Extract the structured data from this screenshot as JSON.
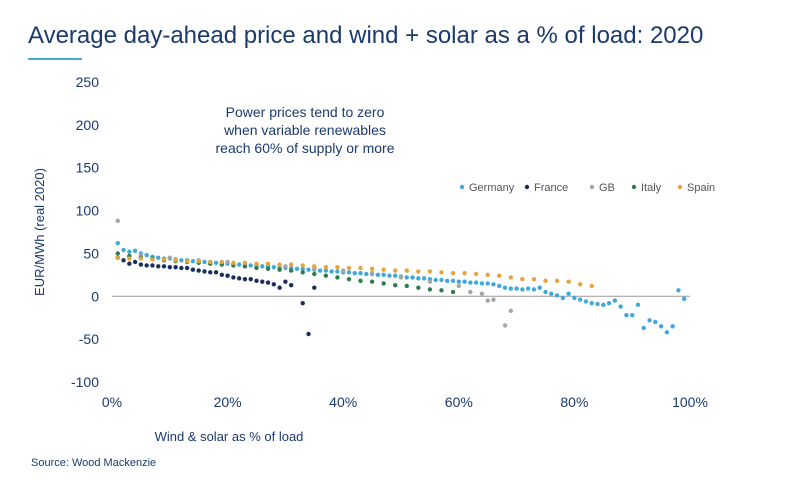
{
  "title": "Average day-ahead price and wind + solar as a % of load: 2020",
  "source": "Source: Wood Mackenzie",
  "chart_data": {
    "type": "scatter",
    "title": "Average day-ahead price and wind + solar as a % of load: 2020",
    "xlabel": "Wind & solar as % of load",
    "ylabel": "EUR/MWh (real 2020)",
    "xlim": [
      0,
      100
    ],
    "ylim": [
      -100,
      250
    ],
    "x_ticks": [
      "0%",
      "20%",
      "40%",
      "60%",
      "80%",
      "100%"
    ],
    "y_ticks": [
      "250",
      "200",
      "150",
      "100",
      "50",
      "0",
      "-50",
      "-100"
    ],
    "grid": false,
    "legend_position": "right",
    "annotation": [
      "Power prices tend to zero",
      "when variable renewables",
      "reach 60% of supply or more"
    ],
    "colors": {
      "Germany": "#3fa9dc",
      "France": "#1b2e5a",
      "GB": "#a6a6a6",
      "Italy": "#2e7d4f",
      "Spain": "#e8a33a",
      "text": "#1a3a6e"
    },
    "series": [
      {
        "name": "Germany",
        "x": [
          1,
          2,
          3,
          4,
          5,
          6,
          7,
          8,
          9,
          10,
          11,
          12,
          13,
          14,
          15,
          16,
          17,
          18,
          19,
          20,
          21,
          22,
          23,
          24,
          25,
          26,
          27,
          28,
          29,
          30,
          31,
          32,
          33,
          34,
          35,
          36,
          37,
          38,
          39,
          40,
          41,
          42,
          43,
          44,
          45,
          46,
          47,
          48,
          49,
          50,
          51,
          52,
          53,
          54,
          55,
          56,
          57,
          58,
          59,
          60,
          61,
          62,
          63,
          64,
          65,
          66,
          67,
          68,
          69,
          70,
          71,
          72,
          73,
          74,
          75,
          76,
          77,
          78,
          79,
          80,
          81,
          82,
          83,
          84,
          85,
          86,
          87,
          88,
          89,
          90,
          91,
          92,
          93,
          94,
          95,
          96,
          97,
          98
        ],
        "y": [
          62,
          54,
          52,
          53,
          50,
          48,
          46,
          45,
          44,
          44,
          43,
          42,
          42,
          41,
          40,
          40,
          40,
          39,
          38,
          38,
          38,
          37,
          37,
          36,
          36,
          35,
          35,
          34,
          34,
          33,
          33,
          32,
          32,
          31,
          31,
          30,
          30,
          29,
          29,
          28,
          28,
          27,
          27,
          26,
          26,
          25,
          25,
          24,
          24,
          23,
          22,
          22,
          21,
          21,
          20,
          19,
          19,
          18,
          18,
          17,
          17,
          16,
          16,
          15,
          15,
          14,
          12,
          10,
          9,
          9,
          8,
          9,
          8,
          10,
          5,
          3,
          1,
          -2,
          3,
          -2,
          -4,
          -6,
          -8,
          -9,
          -10,
          -8,
          -5,
          -12,
          -22,
          -22,
          -10,
          -37,
          -28,
          -30,
          -35,
          -42,
          -35,
          7
        ],
        "extra": [
          [
            99,
            -3
          ]
        ]
      },
      {
        "name": "France",
        "x": [
          1,
          2,
          3,
          4,
          5,
          6,
          7,
          8,
          9,
          10,
          11,
          12,
          13,
          14,
          15,
          16,
          17,
          18,
          19,
          20,
          21,
          22,
          23,
          24,
          25,
          26,
          27,
          28,
          29,
          30,
          31,
          33,
          34,
          35
        ],
        "y": [
          45,
          42,
          38,
          40,
          37,
          36,
          36,
          35,
          35,
          34,
          34,
          33,
          33,
          31,
          30,
          29,
          28,
          28,
          25,
          24,
          22,
          21,
          20,
          20,
          18,
          17,
          16,
          14,
          10,
          17,
          13,
          -8,
          -44,
          10
        ]
      },
      {
        "name": "GB",
        "x": [
          1,
          5,
          10,
          15,
          20,
          25,
          30,
          35,
          40,
          45,
          50,
          55,
          60,
          62,
          64,
          65,
          66,
          68,
          69
        ],
        "y": [
          88,
          48,
          45,
          42,
          40,
          37,
          35,
          32,
          30,
          27,
          22,
          17,
          12,
          5,
          3,
          -5,
          -4,
          -34,
          -17
        ]
      },
      {
        "name": "Italy",
        "x": [
          1,
          3,
          5,
          7,
          9,
          11,
          13,
          15,
          17,
          19,
          21,
          23,
          25,
          27,
          29,
          31,
          33,
          35,
          37,
          39,
          41,
          43,
          45,
          47,
          49,
          51,
          53,
          55,
          57,
          59
        ],
        "y": [
          50,
          47,
          45,
          44,
          42,
          41,
          40,
          39,
          38,
          37,
          36,
          35,
          33,
          32,
          31,
          30,
          28,
          26,
          24,
          22,
          20,
          18,
          17,
          15,
          13,
          12,
          10,
          8,
          7,
          5
        ]
      },
      {
        "name": "Spain",
        "x": [
          1,
          3,
          5,
          7,
          9,
          11,
          13,
          15,
          17,
          19,
          21,
          23,
          25,
          27,
          29,
          31,
          33,
          35,
          37,
          39,
          41,
          43,
          45,
          47,
          49,
          51,
          53,
          55,
          57,
          59,
          61,
          63,
          65,
          67,
          69,
          71,
          73,
          75,
          77,
          79,
          81,
          83
        ],
        "y": [
          45,
          44,
          44,
          43,
          43,
          42,
          41,
          41,
          40,
          40,
          39,
          39,
          38,
          38,
          37,
          37,
          36,
          35,
          34,
          34,
          33,
          33,
          32,
          31,
          30,
          30,
          29,
          29,
          28,
          27,
          27,
          26,
          25,
          24,
          22,
          20,
          20,
          18,
          18,
          17,
          14,
          12
        ]
      }
    ]
  }
}
